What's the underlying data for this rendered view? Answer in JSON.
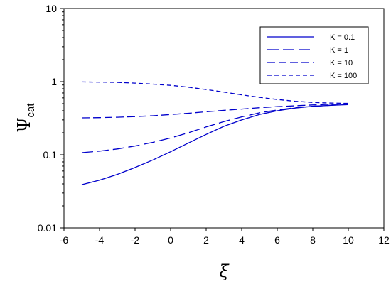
{
  "chart_data": {
    "type": "line",
    "title": "",
    "xlabel": "ξ",
    "ylabel": {
      "main": "Ψ",
      "subscript": "cat"
    },
    "xlim": [
      -6,
      12
    ],
    "ylim": [
      0.01,
      10
    ],
    "yscale": "log",
    "grid": false,
    "legend_position": "top-right",
    "x_ticks": [
      -6,
      -4,
      -2,
      0,
      2,
      4,
      6,
      8,
      10,
      12
    ],
    "x_tick_labels": [
      "-6",
      "-4",
      "-2",
      "0",
      "2",
      "4",
      "6",
      "8",
      "10",
      "12"
    ],
    "y_ticks": [
      0.01,
      0.1,
      1,
      10
    ],
    "y_tick_labels": [
      "0.01",
      "0.1",
      "1",
      "10"
    ],
    "line_color": "#0000cc",
    "x": [
      -5,
      -4,
      -3,
      -2,
      -1,
      0,
      1,
      2,
      3,
      4,
      5,
      6,
      7,
      8,
      9,
      10
    ],
    "series": [
      {
        "name": "K = 0.1",
        "dash": "solid",
        "values": [
          0.039,
          0.045,
          0.054,
          0.067,
          0.085,
          0.11,
          0.145,
          0.19,
          0.245,
          0.3,
          0.355,
          0.4,
          0.435,
          0.46,
          0.475,
          0.485
        ]
      },
      {
        "name": "K = 1",
        "dash": "long",
        "values": [
          0.107,
          0.112,
          0.12,
          0.132,
          0.148,
          0.17,
          0.2,
          0.24,
          0.285,
          0.33,
          0.375,
          0.41,
          0.44,
          0.46,
          0.475,
          0.49
        ]
      },
      {
        "name": "K = 10",
        "dash": "medium",
        "values": [
          0.32,
          0.322,
          0.326,
          0.333,
          0.342,
          0.355,
          0.37,
          0.388,
          0.405,
          0.422,
          0.44,
          0.455,
          0.468,
          0.48,
          0.49,
          0.5
        ]
      },
      {
        "name": "K = 100",
        "dash": "short",
        "values": [
          0.99,
          0.985,
          0.975,
          0.955,
          0.925,
          0.89,
          0.84,
          0.78,
          0.72,
          0.66,
          0.61,
          0.57,
          0.54,
          0.52,
          0.51,
          0.505
        ]
      }
    ]
  }
}
